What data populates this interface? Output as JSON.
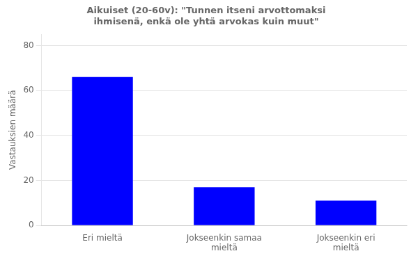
{
  "chart_data": {
    "type": "bar",
    "title": "Aikuiset (20-60v): \"Tunnen itseni arvottomaksi\nihmisenä, enkä ole yhtä arvokas kuin muut\"",
    "ylabel": "Vastauksien määrä",
    "categories": [
      "Eri mieltä",
      "Jokseenkin samaa\nmieltä",
      "Jokseenkin eri\nmieltä"
    ],
    "values": [
      66,
      17,
      11
    ],
    "color": "#0000ff",
    "ylim": [
      0,
      85
    ],
    "yticks": [
      0,
      20,
      40,
      60,
      80
    ],
    "grid": true
  }
}
